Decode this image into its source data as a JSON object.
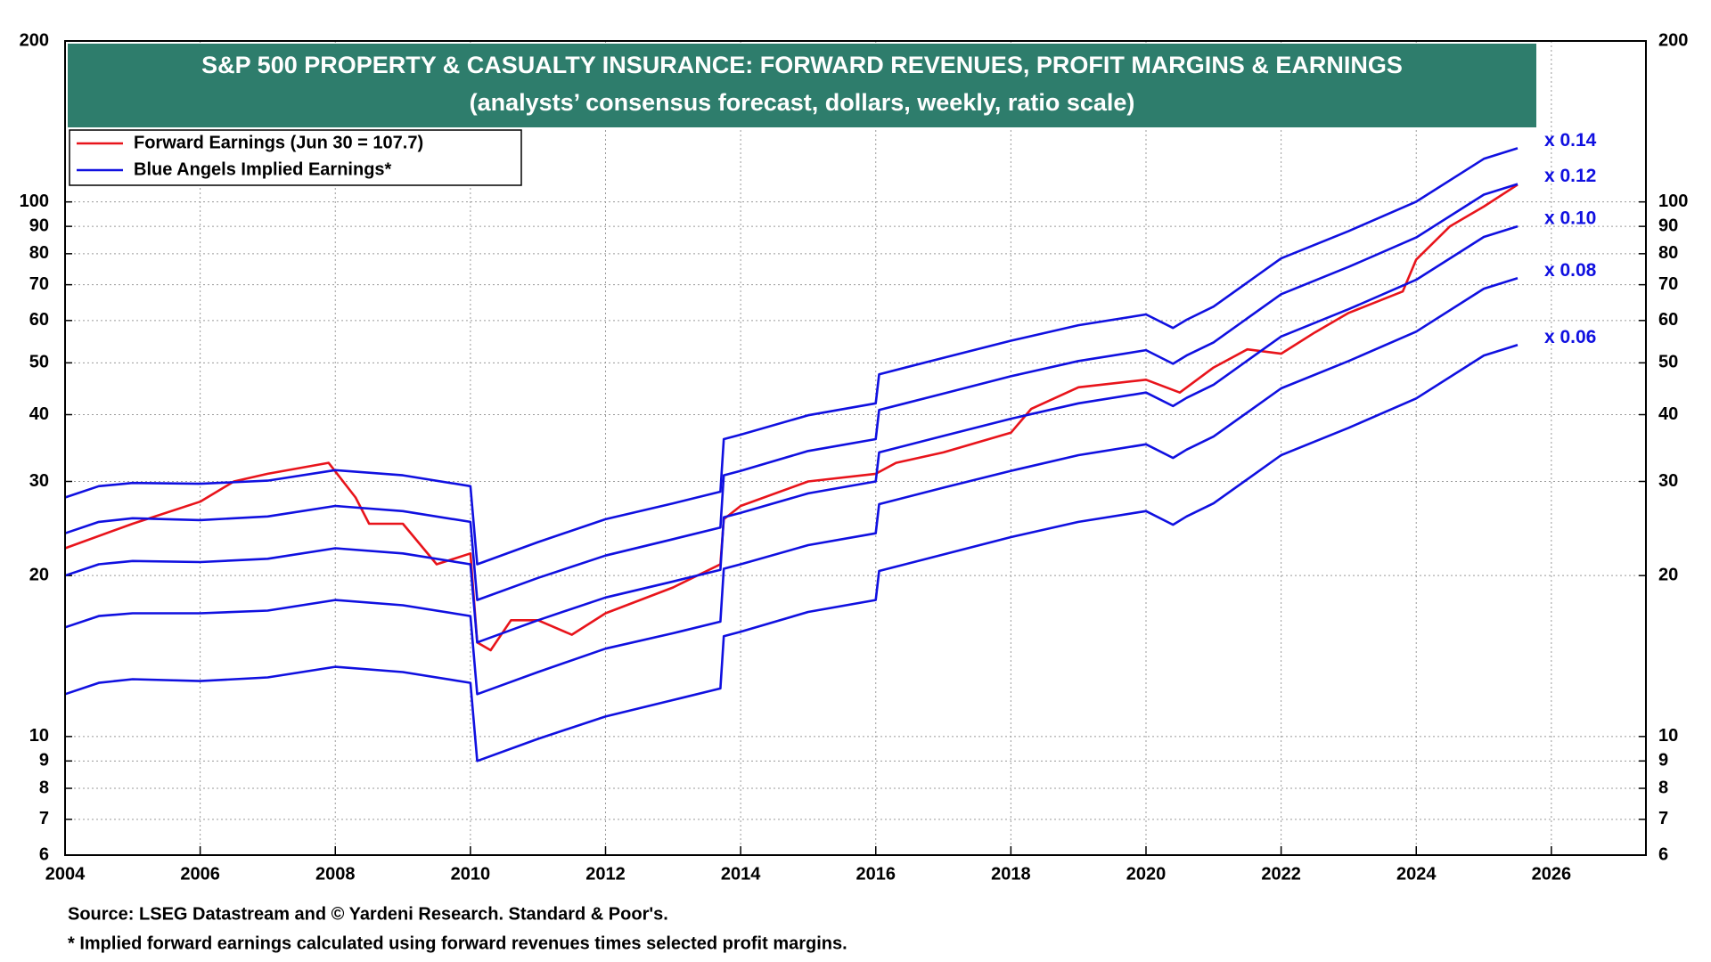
{
  "chart_data": {
    "type": "line",
    "title": "S&P 500 PROPERTY & CASUALTY INSURANCE: FORWARD REVENUES, PROFIT MARGINS & EARNINGS",
    "subtitle": "(analysts’ consensus forecast, dollars, weekly, ratio scale)",
    "legend": [
      {
        "label": "Forward Earnings (Jun 30 = 107.7)",
        "color": "#e8141b"
      },
      {
        "label": "Blue Angels Implied Earnings*",
        "color": "#1010e0"
      }
    ],
    "source": "Source: LSEG Datastream and © Yardeni Research. Standard & Poor's.",
    "footnote": "* Implied forward earnings calculated using forward revenues times selected profit margins.",
    "log_scale": true,
    "grid": true,
    "xlim": [
      2004,
      2027.4
    ],
    "xticks": [
      2004,
      2006,
      2008,
      2010,
      2012,
      2014,
      2016,
      2018,
      2020,
      2022,
      2024,
      2026
    ],
    "ylim": [
      6,
      200
    ],
    "yticks": [
      6,
      7,
      8,
      9,
      10,
      20,
      30,
      40,
      50,
      60,
      70,
      80,
      90,
      100,
      200
    ],
    "x": [
      2004.0,
      2004.5,
      2005.0,
      2006.0,
      2007.0,
      2008.0,
      2009.0,
      2010.0,
      2010.1,
      2011.0,
      2012.0,
      2013.0,
      2013.7,
      2013.75,
      2014.0,
      2015.0,
      2016.0,
      2016.05,
      2017.0,
      2018.0,
      2019.0,
      2020.0,
      2020.4,
      2020.6,
      2021.0,
      2022.0,
      2023.0,
      2024.0,
      2025.0,
      2025.5
    ],
    "series": [
      {
        "name": "Forward Earnings",
        "color": "#e8141b",
        "x": [
          2004.0,
          2005.0,
          2006.0,
          2006.5,
          2007.0,
          2007.9,
          2008.3,
          2008.5,
          2009.0,
          2009.5,
          2010.0,
          2010.1,
          2010.3,
          2010.6,
          2011.0,
          2011.5,
          2012.0,
          2013.0,
          2013.7,
          2013.75,
          2014.0,
          2015.0,
          2016.0,
          2016.3,
          2017.0,
          2018.0,
          2018.3,
          2019.0,
          2020.0,
          2020.5,
          2021.0,
          2021.5,
          2022.0,
          2022.5,
          2023.0,
          2023.8,
          2024.0,
          2024.5,
          2025.0,
          2025.5
        ],
        "values": [
          22.5,
          25,
          27.5,
          30,
          31,
          32.5,
          28,
          25,
          25,
          21,
          22,
          15,
          14.5,
          16.5,
          16.5,
          15.5,
          17,
          19,
          21,
          25.5,
          27,
          30,
          31,
          32.5,
          34,
          37,
          41,
          45,
          46.5,
          44,
          49,
          53,
          52,
          57,
          62,
          68,
          78,
          90,
          98,
          107.7
        ]
      },
      {
        "name": "x 0.14",
        "color": "#1010e0",
        "values": [
          28,
          29.4,
          29.8,
          29.7,
          30.1,
          31.5,
          30.8,
          29.4,
          21,
          23.1,
          25.5,
          27.3,
          28.7,
          36,
          36.7,
          39.9,
          42,
          47.6,
          51.1,
          55,
          58.8,
          61.6,
          58.1,
          60.2,
          63.7,
          78.4,
          88.2,
          100.1,
          120.4,
          126
        ]
      },
      {
        "name": "x 0.12",
        "color": "#1010e0",
        "values": [
          24,
          25.2,
          25.6,
          25.4,
          25.8,
          27,
          26.4,
          25.2,
          18,
          19.8,
          21.8,
          23.4,
          24.6,
          30.8,
          31.4,
          34.2,
          36,
          40.8,
          43.8,
          47.2,
          50.4,
          52.8,
          49.8,
          51.6,
          54.6,
          67.2,
          75.6,
          85.8,
          103.2,
          108
        ]
      },
      {
        "name": "x 0.10",
        "color": "#1010e0",
        "values": [
          20,
          21,
          21.3,
          21.2,
          21.5,
          22.5,
          22,
          21,
          15,
          16.5,
          18.2,
          19.5,
          20.5,
          25.7,
          26.2,
          28.5,
          30,
          34,
          36.5,
          39.3,
          42,
          44,
          41.5,
          43,
          45.5,
          56,
          63,
          71.5,
          86,
          90
        ]
      },
      {
        "name": "x 0.08",
        "color": "#1010e0",
        "values": [
          16,
          16.8,
          17,
          17,
          17.2,
          18,
          17.6,
          16.8,
          12,
          13.2,
          14.6,
          15.6,
          16.4,
          20.6,
          21,
          22.8,
          24,
          27.2,
          29.2,
          31.4,
          33.6,
          35.2,
          33.2,
          34.4,
          36.4,
          44.8,
          50.4,
          57.2,
          68.8,
          72
        ]
      },
      {
        "name": "x 0.06",
        "color": "#1010e0",
        "values": [
          12,
          12.6,
          12.8,
          12.7,
          12.9,
          13.5,
          13.2,
          12.6,
          9,
          9.9,
          10.9,
          11.7,
          12.3,
          15.4,
          15.7,
          17.1,
          18,
          20.4,
          21.9,
          23.6,
          25.2,
          26.4,
          24.9,
          25.8,
          27.3,
          33.6,
          37.8,
          42.9,
          51.6,
          54
        ]
      }
    ]
  }
}
